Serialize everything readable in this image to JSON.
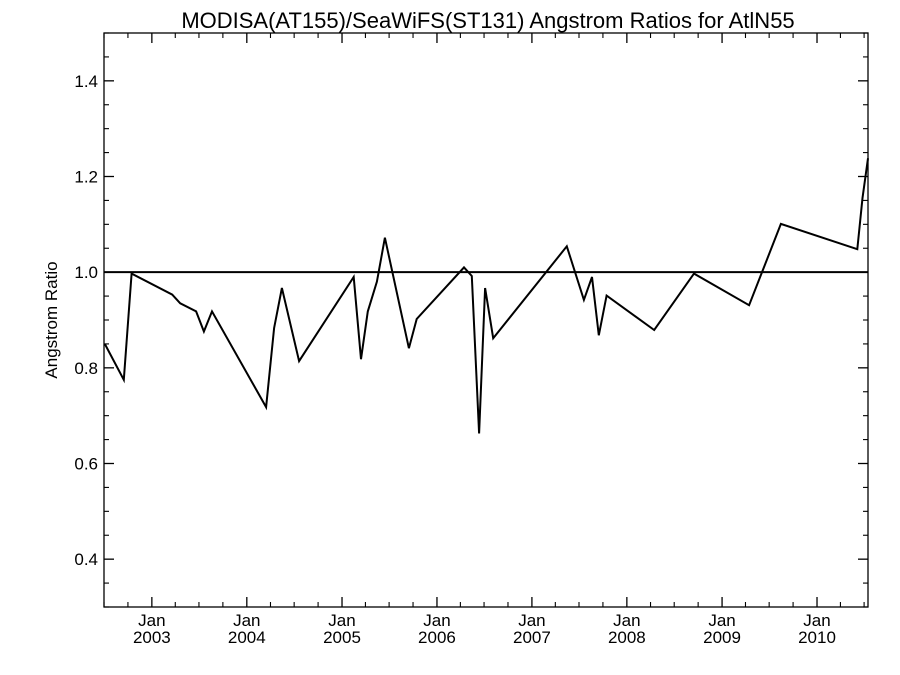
{
  "chart_data": {
    "type": "line",
    "title": "MODISA(AT155)/SeaWiFS(ST131)  Angstrom Ratios for AtlN55",
    "xlabel": "",
    "ylabel": "Angstrom Ratio",
    "xlim": [
      "2002-07-01",
      "2010-07-16"
    ],
    "ylim": [
      0.3,
      1.5
    ],
    "y_ticks": [
      0.4,
      0.6,
      0.8,
      1.0,
      1.2,
      1.4
    ],
    "y_tick_labels": [
      "0.4",
      "0.6",
      "0.8",
      "1.0",
      "1.2",
      "1.4"
    ],
    "x_ticks": [
      {
        "month": "Jan",
        "year": "2003",
        "date": "2003-01-01"
      },
      {
        "month": "Jan",
        "year": "2004",
        "date": "2004-01-01"
      },
      {
        "month": "Jan",
        "year": "2005",
        "date": "2005-01-01"
      },
      {
        "month": "Jan",
        "year": "2006",
        "date": "2006-01-01"
      },
      {
        "month": "Jan",
        "year": "2007",
        "date": "2007-01-01"
      },
      {
        "month": "Jan",
        "year": "2008",
        "date": "2008-01-01"
      },
      {
        "month": "Jan",
        "year": "2009",
        "date": "2009-01-01"
      },
      {
        "month": "Jan",
        "year": "2010",
        "date": "2010-01-01"
      }
    ],
    "reference_line": 1.0,
    "grid": false,
    "series": [
      {
        "color": "#000000",
        "points": [
          {
            "x": "2002-07-04",
            "y": 0.85
          },
          {
            "x": "2002-09-15",
            "y": 0.775
          },
          {
            "x": "2002-10-15",
            "y": 0.997
          },
          {
            "x": "2003-03-20",
            "y": 0.953
          },
          {
            "x": "2003-04-20",
            "y": 0.935
          },
          {
            "x": "2003-06-20",
            "y": 0.918
          },
          {
            "x": "2003-07-20",
            "y": 0.876
          },
          {
            "x": "2003-08-20",
            "y": 0.918
          },
          {
            "x": "2004-03-15",
            "y": 0.718
          },
          {
            "x": "2004-04-15",
            "y": 0.883
          },
          {
            "x": "2004-05-15",
            "y": 0.967
          },
          {
            "x": "2004-07-20",
            "y": 0.814
          },
          {
            "x": "2005-02-15",
            "y": 0.99
          },
          {
            "x": "2005-03-15",
            "y": 0.818
          },
          {
            "x": "2005-04-10",
            "y": 0.918
          },
          {
            "x": "2005-05-15",
            "y": 0.98
          },
          {
            "x": "2005-06-15",
            "y": 1.072
          },
          {
            "x": "2005-09-15",
            "y": 0.841
          },
          {
            "x": "2005-10-15",
            "y": 0.902
          },
          {
            "x": "2006-04-15",
            "y": 1.01
          },
          {
            "x": "2006-05-15",
            "y": 0.992
          },
          {
            "x": "2006-06-12",
            "y": 0.663
          },
          {
            "x": "2006-07-05",
            "y": 0.967
          },
          {
            "x": "2006-08-05",
            "y": 0.862
          },
          {
            "x": "2007-05-15",
            "y": 1.054
          },
          {
            "x": "2007-07-20",
            "y": 0.942
          },
          {
            "x": "2007-08-20",
            "y": 0.99
          },
          {
            "x": "2007-09-15",
            "y": 0.868
          },
          {
            "x": "2007-10-15",
            "y": 0.951
          },
          {
            "x": "2008-04-15",
            "y": 0.879
          },
          {
            "x": "2008-09-15",
            "y": 0.997
          },
          {
            "x": "2009-04-15",
            "y": 0.931
          },
          {
            "x": "2009-08-15",
            "y": 1.101
          },
          {
            "x": "2010-06-05",
            "y": 1.048
          },
          {
            "x": "2010-06-25",
            "y": 1.155
          },
          {
            "x": "2010-07-16",
            "y": 1.238
          }
        ]
      }
    ]
  }
}
